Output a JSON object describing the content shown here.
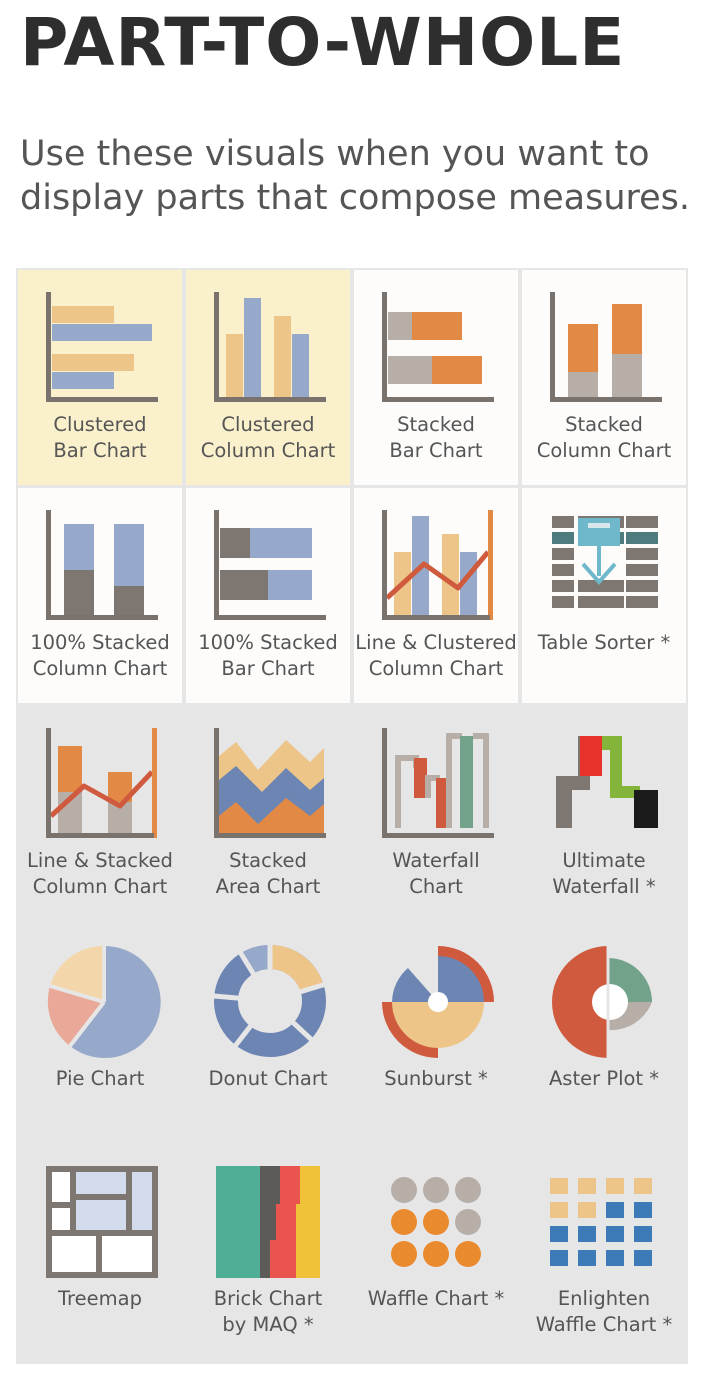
{
  "title": "PART-TO-WHOLE",
  "subtitle": "Use these visuals when you want to display parts that compose measures.",
  "colors": {
    "panel": "#e6e6e6",
    "highlight": "#fbf0cc",
    "white_cell": "#fdfcfb",
    "axis": "#7a726c",
    "peach": "#edc588",
    "blue": "#97a9ca",
    "orange": "#e28a45",
    "taupe": "#b7aea8",
    "dark_taupe": "#7e7671",
    "red": "#d05a3e"
  },
  "tiles": [
    {
      "id": "clustered-bar",
      "line1": "Clustered",
      "line2": "Bar Chart",
      "icon": "clustered-bar-icon"
    },
    {
      "id": "clustered-column",
      "line1": "Clustered",
      "line2": "Column Chart",
      "icon": "clustered-column-icon"
    },
    {
      "id": "stacked-bar",
      "line1": "Stacked",
      "line2": "Bar Chart",
      "icon": "stacked-bar-icon"
    },
    {
      "id": "stacked-column",
      "line1": "Stacked",
      "line2": "Column Chart",
      "icon": "stacked-column-icon"
    },
    {
      "id": "100-stacked-column",
      "line1": "100% Stacked",
      "line2": "Column Chart",
      "icon": "percent-stacked-column-icon"
    },
    {
      "id": "100-stacked-bar",
      "line1": "100% Stacked",
      "line2": "Bar Chart",
      "icon": "percent-stacked-bar-icon"
    },
    {
      "id": "line-clustered-column",
      "line1": "Line & Clustered",
      "line2": "Column Chart",
      "icon": "line-clustered-column-icon"
    },
    {
      "id": "table-sorter",
      "line1": "Table Sorter *",
      "line2": "",
      "icon": "table-sorter-icon"
    },
    {
      "id": "line-stacked-column",
      "line1": "Line & Stacked",
      "line2": "Column Chart",
      "icon": "line-stacked-column-icon"
    },
    {
      "id": "stacked-area",
      "line1": "Stacked",
      "line2": "Area Chart",
      "icon": "stacked-area-icon"
    },
    {
      "id": "waterfall",
      "line1": "Waterfall",
      "line2": "Chart",
      "icon": "waterfall-icon"
    },
    {
      "id": "ultimate-waterfall",
      "line1": "Ultimate",
      "line2": "Waterfall *",
      "icon": "ultimate-waterfall-icon"
    },
    {
      "id": "pie",
      "line1": "Pie Chart",
      "line2": "",
      "icon": "pie-icon"
    },
    {
      "id": "donut",
      "line1": "Donut Chart",
      "line2": "",
      "icon": "donut-icon"
    },
    {
      "id": "sunburst",
      "line1": "Sunburst *",
      "line2": "",
      "icon": "sunburst-icon"
    },
    {
      "id": "aster",
      "line1": "Aster Plot *",
      "line2": "",
      "icon": "aster-plot-icon"
    },
    {
      "id": "treemap",
      "line1": "Treemap",
      "line2": "",
      "icon": "treemap-icon"
    },
    {
      "id": "brick",
      "line1": "Brick Chart",
      "line2": "by MAQ *",
      "icon": "brick-chart-icon"
    },
    {
      "id": "waffle",
      "line1": "Waffle Chart *",
      "line2": "",
      "icon": "waffle-icon"
    },
    {
      "id": "enlighten-waffle",
      "line1": "Enlighten",
      "line2": "Waffle Chart *",
      "icon": "enlighten-waffle-icon"
    }
  ]
}
